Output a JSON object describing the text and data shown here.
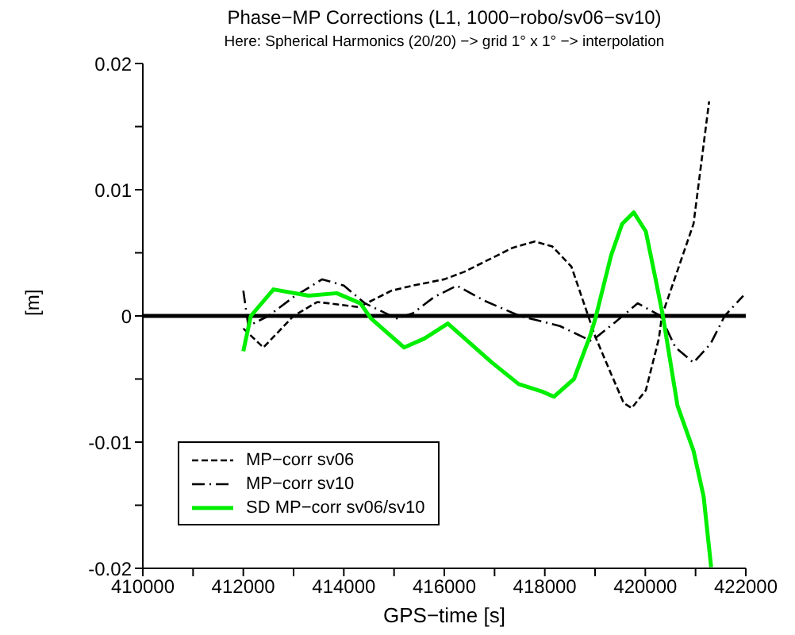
{
  "chart_data": {
    "type": "line",
    "title": "Phase−MP Corrections (L1, 1000−robo/sv06−sv10)",
    "subtitle": "Here: Spherical Harmonics (20/20) −> grid 1° x 1° −> interpolation",
    "xlabel": "GPS−time [s]",
    "ylabel": "[m]",
    "xlim": [
      410000,
      422000
    ],
    "ylim": [
      -0.02,
      0.02
    ],
    "xticks": [
      410000,
      {
        "value": 411000,
        "label": null
      },
      412000,
      {
        "value": 413000,
        "label": null
      },
      414000,
      {
        "value": 415000,
        "label": null
      },
      416000,
      {
        "value": 417000,
        "label": null
      },
      418000,
      {
        "value": 419000,
        "label": null
      },
      420000,
      {
        "value": 421000,
        "label": null
      },
      422000
    ],
    "yticks": [
      -0.02,
      {
        "value": -0.015,
        "label": null
      },
      -0.01,
      {
        "value": -0.005,
        "label": null
      },
      0,
      {
        "value": 0.005,
        "label": null
      },
      0.01,
      {
        "value": 0.015,
        "label": null
      },
      0.02
    ],
    "legend": "bottom left",
    "marker": "none",
    "ref_lines": [
      {
        "axis": "y",
        "value": 0,
        "color": "#000000"
      }
    ],
    "series": [
      {
        "name": "MP−corr sv06",
        "color": "#000000",
        "line_style": "dashed",
        "x": [
          412000,
          412400,
          413000,
          413470,
          413700,
          414300,
          414950,
          415370,
          416000,
          416400,
          417360,
          417800,
          418150,
          418530,
          419000,
          419320,
          419570,
          419730,
          420010,
          420270,
          420330,
          420960,
          421270
        ],
        "values": [
          -0.001,
          -0.0025,
          0,
          0.0011,
          0.001,
          0.0007,
          0.002,
          0.0024,
          0.0029,
          0.0035,
          0.0054,
          0.0059,
          0.0055,
          0.0039,
          -0.0016,
          -0.0046,
          -0.0069,
          -0.0073,
          -0.0059,
          -0.0018,
          0,
          0.0073,
          0.017
        ]
      },
      {
        "name": "MP−corr sv10",
        "color": "#000000",
        "line_style": "dotted",
        "x": [
          412000,
          412100,
          412500,
          413000,
          413570,
          414000,
          414420,
          415050,
          415370,
          415800,
          416250,
          416800,
          417500,
          418300,
          418930,
          419400,
          419850,
          420300,
          420600,
          420960,
          421300,
          421580,
          421950
        ],
        "values": [
          0.002,
          -0.0008,
          0,
          0.0015,
          0.0029,
          0.0024,
          0.001,
          -0.0002,
          0.0002,
          0.0015,
          0.0024,
          0.0012,
          0,
          -0.0008,
          -0.002,
          -0.0005,
          0.001,
          0,
          -0.0025,
          -0.0037,
          -0.0022,
          0,
          0.0016
        ]
      },
      {
        "name": "SD MP−corr sv06/sv10",
        "color": "#00ee00",
        "line_style": "solid",
        "x": [
          412000,
          412150,
          412600,
          413300,
          413860,
          414330,
          414540,
          415200,
          415600,
          416070,
          416950,
          417480,
          417950,
          418180,
          418580,
          418900,
          419000,
          419320,
          419540,
          419770,
          420010,
          420200,
          420350,
          420640,
          420960,
          421160,
          421310
        ],
        "values": [
          -0.0028,
          0,
          0.0021,
          0.0016,
          0.0018,
          0.001,
          -0.0002,
          -0.0025,
          -0.0018,
          -0.0006,
          -0.0037,
          -0.0054,
          -0.006,
          -0.0064,
          -0.005,
          -0.0016,
          -0.0003,
          0.0048,
          0.0073,
          0.0082,
          0.0067,
          0.003,
          0,
          -0.0071,
          -0.0107,
          -0.0143,
          -0.0199
        ]
      }
    ]
  }
}
